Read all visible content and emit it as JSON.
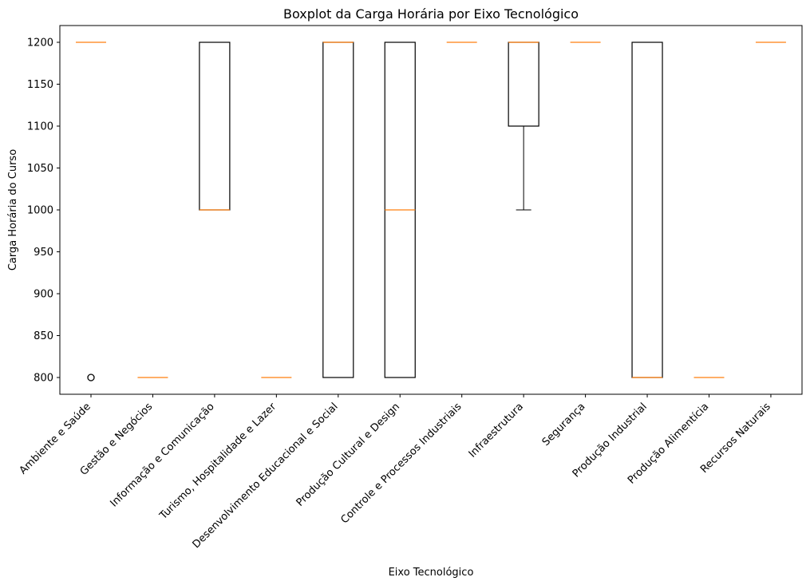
{
  "chart_data": {
    "type": "boxplot",
    "title": "Boxplot da Carga Horária por Eixo Tecnológico",
    "xlabel": "Eixo Tecnológico",
    "ylabel": "Carga Horária do Curso",
    "ylim": [
      780,
      1220
    ],
    "yticks": [
      800,
      850,
      900,
      950,
      1000,
      1050,
      1100,
      1150,
      1200
    ],
    "grid": false,
    "colors": {
      "box": "#000000",
      "median": "#ff7f0e",
      "flier": "#000000"
    },
    "categories": [
      "Ambiente e Saúde",
      "Gestão e Negócios",
      "Informação e Comunicação",
      "Turismo, Hospitalidade e Lazer",
      "Desenvolvimento Educacional e Social",
      "Produção Cultural e Design",
      "Controle e Processos Industriais",
      "Infraestrutura",
      "Segurança",
      "Produção Industrial",
      "Produção Alimentícia",
      "Recursos Naturais"
    ],
    "boxes": [
      {
        "whislo": 1200,
        "q1": 1200,
        "med": 1200,
        "q3": 1200,
        "whishi": 1200,
        "fliers": [
          800
        ]
      },
      {
        "whislo": 800,
        "q1": 800,
        "med": 800,
        "q3": 800,
        "whishi": 800,
        "fliers": []
      },
      {
        "whislo": 1000,
        "q1": 1000,
        "med": 1000,
        "q3": 1200,
        "whishi": 1200,
        "fliers": []
      },
      {
        "whislo": 800,
        "q1": 800,
        "med": 800,
        "q3": 800,
        "whishi": 800,
        "fliers": []
      },
      {
        "whislo": 800,
        "q1": 800,
        "med": 1200,
        "q3": 1200,
        "whishi": 1200,
        "fliers": []
      },
      {
        "whislo": 800,
        "q1": 800,
        "med": 1000,
        "q3": 1200,
        "whishi": 1200,
        "fliers": []
      },
      {
        "whislo": 1200,
        "q1": 1200,
        "med": 1200,
        "q3": 1200,
        "whishi": 1200,
        "fliers": []
      },
      {
        "whislo": 1000,
        "q1": 1100,
        "med": 1200,
        "q3": 1200,
        "whishi": 1200,
        "fliers": []
      },
      {
        "whislo": 1200,
        "q1": 1200,
        "med": 1200,
        "q3": 1200,
        "whishi": 1200,
        "fliers": []
      },
      {
        "whislo": 800,
        "q1": 800,
        "med": 800,
        "q3": 1200,
        "whishi": 1200,
        "fliers": []
      },
      {
        "whislo": 800,
        "q1": 800,
        "med": 800,
        "q3": 800,
        "whishi": 800,
        "fliers": []
      },
      {
        "whislo": 1200,
        "q1": 1200,
        "med": 1200,
        "q3": 1200,
        "whishi": 1200,
        "fliers": []
      }
    ]
  }
}
